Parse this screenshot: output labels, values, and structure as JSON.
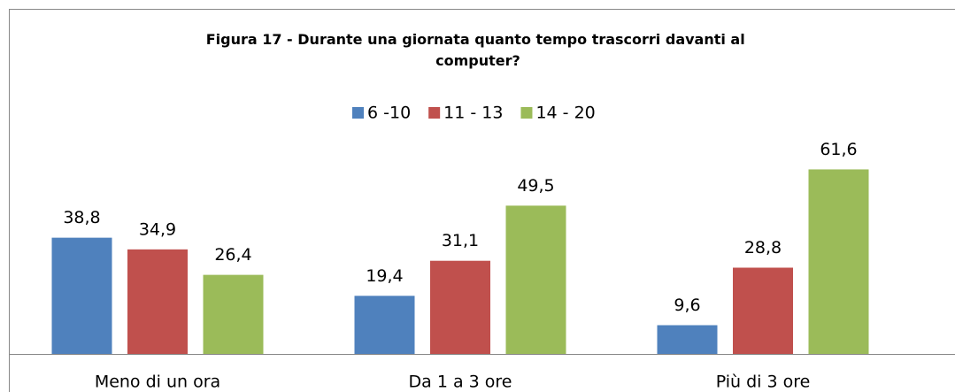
{
  "chart_data": {
    "type": "bar",
    "title": "Figura 17 - Durante una giornata quanto tempo trascorri davanti al computer?",
    "categories": [
      "Meno di un ora",
      "Da 1 a 3 ore",
      "Più di 3 ore"
    ],
    "series": [
      {
        "name": "6 -10",
        "color": "#4f81bd",
        "values": [
          38.8,
          19.4,
          9.6
        ],
        "value_labels": [
          "38,8",
          "19,4",
          "9,6"
        ]
      },
      {
        "name": "11 - 13",
        "color": "#c0504d",
        "values": [
          34.9,
          31.1,
          28.8
        ],
        "value_labels": [
          "34,9",
          "31,1",
          "28,8"
        ]
      },
      {
        "name": "14 - 20",
        "color": "#9bbb59",
        "values": [
          26.4,
          49.5,
          61.6
        ],
        "value_labels": [
          "26,4",
          "49,5",
          "61,6"
        ]
      }
    ],
    "ylim": [
      0,
      70
    ],
    "legend": "top"
  }
}
